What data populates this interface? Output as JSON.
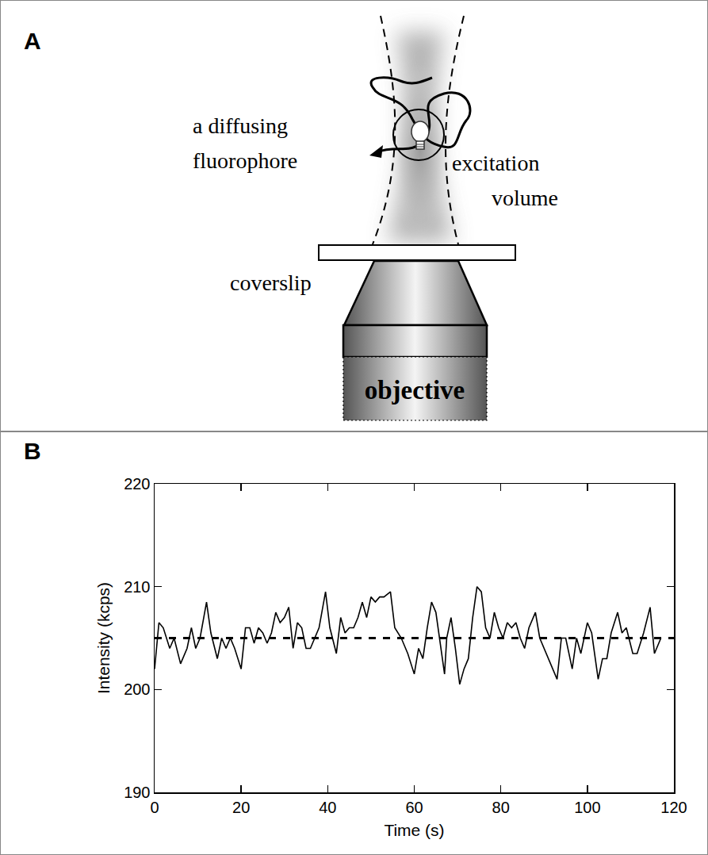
{
  "diagram": {
    "panel": "A",
    "labels": {
      "fluorophore": [
        "a diffusing",
        "fluorophore"
      ],
      "volume": [
        "excitation",
        "volume"
      ],
      "coverslip": "coverslip",
      "objective": "objective"
    }
  },
  "chart_data": {
    "type": "line",
    "annotations": [
      {
        "text": "B"
      }
    ],
    "x_label": "Time (s)",
    "y_label": "Intensity (kcps)",
    "series": [
      {
        "type": "line",
        "line_style": "solid",
        "color": "#000000",
        "x": [
          0,
          1,
          2,
          3.5,
          4.5,
          6,
          7.5,
          8.5,
          9.5,
          10.5,
          12,
          13,
          14.5,
          15.5,
          16.5,
          17.5,
          18.5,
          20,
          21,
          22,
          23,
          24,
          25,
          26,
          27,
          28,
          29,
          30,
          31,
          32,
          33,
          34,
          35,
          36,
          37,
          38,
          39.5,
          40.5,
          42,
          43,
          44,
          45,
          46,
          47,
          48,
          49,
          50,
          51,
          52,
          53,
          54.5,
          55.5,
          57,
          58.5,
          60,
          61,
          62,
          63,
          64,
          65,
          67,
          67.5,
          68.5,
          69.5,
          70.5,
          71.5,
          72.5,
          73.5,
          74.5,
          75.5,
          76.5,
          77.5,
          78.5,
          79.5,
          80.5,
          81.5,
          82.5,
          83.5,
          84.5,
          85.5,
          86.5,
          88,
          89,
          90,
          91.5,
          93,
          94,
          95,
          96.5,
          97.5,
          98.5,
          100,
          101,
          102.5,
          103.5,
          104.5,
          105.5,
          107,
          108,
          109,
          110.5,
          111.5,
          113,
          114.5,
          115.5,
          117
        ],
        "values": [
          202,
          206.5,
          206,
          204,
          205,
          202.5,
          204,
          206,
          204,
          205,
          208.5,
          205.5,
          203,
          205,
          204,
          205,
          204,
          202,
          206,
          206,
          204.5,
          206,
          205.5,
          204.5,
          205.5,
          207.5,
          206.5,
          207,
          208,
          204,
          206.5,
          206,
          204,
          204,
          205,
          206,
          209.5,
          206,
          203.5,
          207,
          205.5,
          206,
          206,
          207,
          208.5,
          207,
          209,
          208.5,
          209,
          209,
          209.5,
          206,
          205,
          203.5,
          201.5,
          204,
          203,
          206,
          208.5,
          207.5,
          201.5,
          205,
          207,
          204,
          200.5,
          202,
          203,
          207,
          210,
          209.5,
          206,
          205,
          207.5,
          206,
          205,
          206.5,
          206,
          206.5,
          205,
          204,
          206,
          207.5,
          205,
          204,
          202.5,
          201,
          205,
          205,
          202,
          205,
          203.5,
          206.5,
          205.5,
          201,
          203,
          203,
          205.5,
          207.5,
          205.5,
          206,
          203.5,
          203.5,
          205.5,
          208,
          203.5,
          205
        ]
      },
      {
        "type": "line",
        "line_style": "dashed",
        "color": "#000000",
        "x": [
          0,
          120
        ],
        "values": [
          205,
          205
        ]
      }
    ],
    "xlim": [
      0,
      120
    ],
    "xticks": [
      0,
      20,
      40,
      60,
      80,
      100,
      120
    ],
    "ylim": [
      190,
      220
    ],
    "yticks": [
      190,
      200,
      210,
      220
    ],
    "grid": false
  }
}
